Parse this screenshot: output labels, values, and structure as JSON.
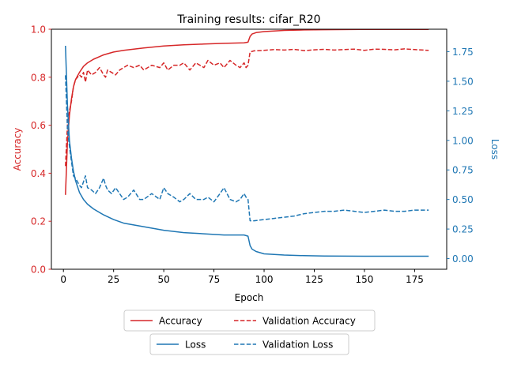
{
  "chart_data": {
    "type": "line",
    "title": "Training results: cifar_R20",
    "xlabel": "Epoch",
    "y_left_label": "Accuracy",
    "y_right_label": "Loss",
    "xlim": [
      -6,
      191
    ],
    "y_left_lim": [
      0.0,
      1.0
    ],
    "y_right_lim": [
      -0.09,
      1.94
    ],
    "x_ticks": [
      "0",
      "25",
      "50",
      "75",
      "100",
      "125",
      "150",
      "175"
    ],
    "y_left_ticks": [
      "0.0",
      "0.2",
      "0.4",
      "0.6",
      "0.8",
      "1.0"
    ],
    "y_right_ticks": [
      "0.00",
      "0.25",
      "0.50",
      "0.75",
      "1.00",
      "1.25",
      "1.50",
      "1.75"
    ],
    "grid": false,
    "legend_placement": "below plot",
    "colors": {
      "accuracy_axis": "#d62728",
      "loss_axis": "#1f77b4"
    },
    "series": [
      {
        "name": "Accuracy",
        "axis": "left",
        "color": "#d62728",
        "style": "solid",
        "x": [
          1,
          2,
          3,
          4,
          5,
          6,
          8,
          10,
          12,
          15,
          20,
          25,
          30,
          40,
          50,
          60,
          70,
          80,
          90,
          92,
          93,
          94,
          96,
          100,
          110,
          120,
          130,
          150,
          182
        ],
        "y": [
          0.31,
          0.53,
          0.64,
          0.71,
          0.76,
          0.79,
          0.82,
          0.845,
          0.86,
          0.875,
          0.893,
          0.905,
          0.912,
          0.922,
          0.93,
          0.935,
          0.938,
          0.941,
          0.943,
          0.946,
          0.97,
          0.98,
          0.986,
          0.99,
          0.995,
          0.997,
          0.998,
          0.999,
          0.999
        ]
      },
      {
        "name": "Validation Accuracy",
        "axis": "left",
        "color": "#d62728",
        "style": "dashed",
        "x": [
          1,
          2,
          3,
          4,
          5,
          6,
          7,
          8,
          9,
          10,
          11,
          12,
          14,
          16,
          18,
          20,
          21,
          22,
          24,
          26,
          28,
          30,
          32,
          35,
          38,
          40,
          44,
          48,
          50,
          52,
          55,
          58,
          60,
          63,
          66,
          70,
          72,
          75,
          78,
          80,
          83,
          86,
          88,
          90,
          91,
          92,
          93,
          95,
          100,
          105,
          110,
          115,
          120,
          125,
          130,
          135,
          140,
          145,
          150,
          155,
          160,
          165,
          170,
          175,
          182
        ],
        "y": [
          0.43,
          0.6,
          0.66,
          0.7,
          0.76,
          0.79,
          0.8,
          0.81,
          0.8,
          0.82,
          0.78,
          0.83,
          0.81,
          0.82,
          0.84,
          0.81,
          0.8,
          0.83,
          0.82,
          0.81,
          0.83,
          0.84,
          0.85,
          0.84,
          0.85,
          0.83,
          0.85,
          0.84,
          0.86,
          0.83,
          0.85,
          0.85,
          0.86,
          0.83,
          0.86,
          0.84,
          0.87,
          0.85,
          0.86,
          0.84,
          0.87,
          0.85,
          0.84,
          0.86,
          0.84,
          0.85,
          0.905,
          0.91,
          0.912,
          0.915,
          0.913,
          0.916,
          0.911,
          0.914,
          0.916,
          0.913,
          0.915,
          0.917,
          0.912,
          0.917,
          0.916,
          0.914,
          0.918,
          0.915,
          0.912
        ]
      },
      {
        "name": "Loss",
        "axis": "right",
        "color": "#1f77b4",
        "style": "solid",
        "x": [
          1,
          2,
          3,
          4,
          5,
          6,
          8,
          10,
          12,
          15,
          20,
          25,
          30,
          40,
          50,
          60,
          70,
          80,
          90,
          92,
          93,
          94,
          96,
          100,
          110,
          120,
          130,
          150,
          182
        ],
        "y": [
          1.8,
          1.3,
          1.0,
          0.85,
          0.74,
          0.66,
          0.56,
          0.5,
          0.46,
          0.42,
          0.37,
          0.33,
          0.3,
          0.27,
          0.24,
          0.22,
          0.21,
          0.2,
          0.2,
          0.19,
          0.11,
          0.08,
          0.06,
          0.04,
          0.03,
          0.025,
          0.022,
          0.02,
          0.02
        ]
      },
      {
        "name": "Validation Loss",
        "axis": "right",
        "color": "#1f77b4",
        "style": "dashed",
        "x": [
          1,
          2,
          3,
          4,
          5,
          6,
          7,
          8,
          9,
          10,
          11,
          12,
          14,
          16,
          18,
          20,
          21,
          22,
          24,
          26,
          28,
          30,
          32,
          35,
          38,
          40,
          44,
          48,
          50,
          52,
          55,
          58,
          60,
          63,
          66,
          70,
          72,
          75,
          78,
          80,
          83,
          86,
          88,
          90,
          91,
          92,
          93,
          95,
          100,
          105,
          110,
          115,
          120,
          125,
          130,
          135,
          140,
          145,
          150,
          155,
          160,
          165,
          170,
          175,
          182
        ],
        "y": [
          1.55,
          1.1,
          0.95,
          0.82,
          0.7,
          0.68,
          0.65,
          0.62,
          0.6,
          0.65,
          0.7,
          0.6,
          0.58,
          0.55,
          0.6,
          0.68,
          0.62,
          0.58,
          0.55,
          0.6,
          0.55,
          0.5,
          0.52,
          0.58,
          0.5,
          0.5,
          0.55,
          0.5,
          0.6,
          0.55,
          0.52,
          0.48,
          0.5,
          0.55,
          0.5,
          0.5,
          0.52,
          0.48,
          0.55,
          0.6,
          0.5,
          0.48,
          0.5,
          0.55,
          0.52,
          0.5,
          0.32,
          0.32,
          0.33,
          0.34,
          0.35,
          0.36,
          0.38,
          0.39,
          0.4,
          0.4,
          0.41,
          0.4,
          0.39,
          0.4,
          0.41,
          0.4,
          0.4,
          0.41,
          0.41
        ]
      }
    ]
  }
}
